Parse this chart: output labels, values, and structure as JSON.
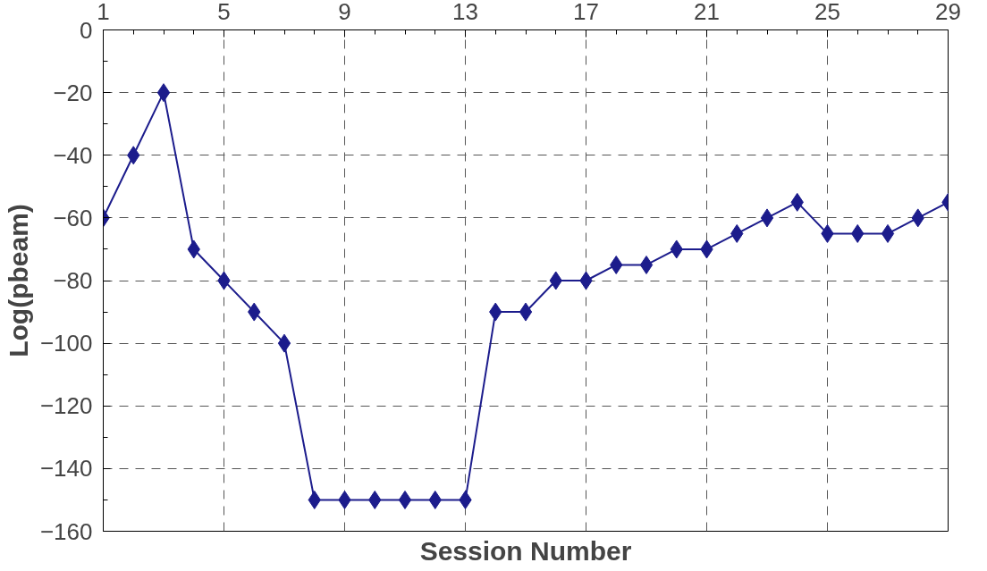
{
  "chart_data": {
    "type": "line",
    "xlabel": "Session Number",
    "ylabel": "Log(pbeam)",
    "x": [
      1,
      2,
      3,
      4,
      5,
      6,
      7,
      8,
      9,
      10,
      11,
      12,
      13,
      14,
      15,
      16,
      17,
      18,
      19,
      20,
      21,
      22,
      23,
      24,
      25,
      26,
      27,
      28,
      29
    ],
    "series": [
      {
        "color": "#1c1c8c",
        "values": [
          -60,
          -40,
          -20,
          -70,
          -80,
          -90,
          -100,
          -150,
          -150,
          -150,
          -150,
          -150,
          -150,
          -90,
          -90,
          -80,
          -80,
          -75,
          -75,
          -70,
          -70,
          -65,
          -60,
          -55,
          -65,
          -65,
          -65,
          -60,
          -55
        ]
      }
    ],
    "xlim": [
      1,
      29
    ],
    "xticks": [
      1,
      5,
      9,
      13,
      17,
      21,
      25,
      29
    ],
    "ylim": [
      -160,
      0
    ],
    "yticks": [
      -160,
      -140,
      -120,
      -100,
      -80,
      -60,
      -40,
      -20,
      0
    ],
    "grid": true,
    "marker": "diamond",
    "line_style": "solid"
  }
}
